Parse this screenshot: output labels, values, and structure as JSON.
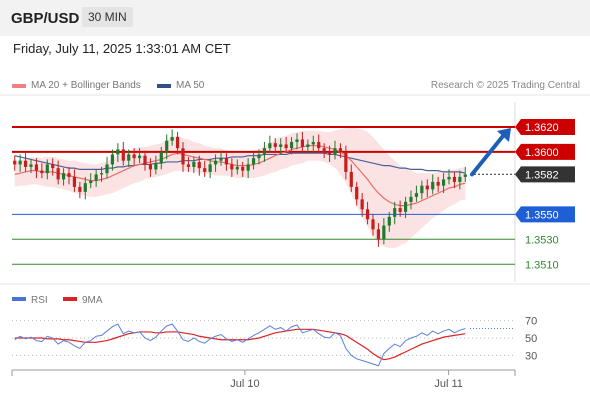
{
  "header": {
    "symbol": "GBP/USD",
    "timeframe": "30 MIN"
  },
  "datetime": "Friday, July 11, 2025 1:33:01 AM CET",
  "legend": [
    {
      "label": "MA 20 + Bollinger Bands",
      "color": "#f08080"
    },
    {
      "label": "MA 50",
      "color": "#2f4f8f"
    }
  ],
  "credit": "Research © 2025 Trading Central",
  "chart_data": {
    "type": "candlestick",
    "instrument": "GBP/USD",
    "ylim": [
      1.3495,
      1.364
    ],
    "x_ticks": [
      {
        "label": "Jul 10",
        "pos": 0.463
      },
      {
        "label": "Jul 11",
        "pos": 0.868
      }
    ],
    "levels": [
      {
        "value": 1.362,
        "label": "1.3620",
        "color": "#cc0000",
        "style": "resistance"
      },
      {
        "value": 1.36,
        "label": "1.3600",
        "color": "#cc0000",
        "style": "resistance"
      },
      {
        "value": 1.3582,
        "label": "1.3582",
        "color": "#333333",
        "style": "current"
      },
      {
        "value": 1.355,
        "label": "1.3550",
        "color": "#1f5fd6",
        "style": "pivot"
      },
      {
        "value": 1.353,
        "label": "1.3530",
        "color": "#2e8b2e",
        "style": "support"
      },
      {
        "value": 1.351,
        "label": "1.3510",
        "color": "#2e8b2e",
        "style": "support"
      }
    ],
    "close": [
      1.359,
      1.3593,
      1.3588,
      1.359,
      1.3585,
      1.3583,
      1.359,
      1.3587,
      1.3578,
      1.3583,
      1.358,
      1.3572,
      1.3568,
      1.3575,
      1.3577,
      1.3582,
      1.3583,
      1.359,
      1.3598,
      1.3602,
      1.3593,
      1.3598,
      1.3595,
      1.3597,
      1.359,
      1.3586,
      1.3591,
      1.36,
      1.3609,
      1.3612,
      1.3603,
      1.359,
      1.3588,
      1.3592,
      1.3587,
      1.3584,
      1.359,
      1.3593,
      1.3595,
      1.359,
      1.3586,
      1.3588,
      1.3585,
      1.359,
      1.3595,
      1.3598,
      1.3603,
      1.3607,
      1.3604,
      1.3606,
      1.3603,
      1.3608,
      1.361,
      1.3604,
      1.3606,
      1.3608,
      1.3603,
      1.36,
      1.3598,
      1.3603,
      1.36,
      1.3584,
      1.3572,
      1.3562,
      1.3554,
      1.3546,
      1.3538,
      1.353,
      1.3541,
      1.3548,
      1.3555,
      1.3552,
      1.356,
      1.3564,
      1.3567,
      1.3573,
      1.357,
      1.3576,
      1.3573,
      1.3578,
      1.358,
      1.3576,
      1.358,
      1.3582
    ],
    "ma20": [
      1.3582,
      1.3583,
      1.3584,
      1.3585,
      1.3585,
      1.3584,
      1.3584,
      1.3584,
      1.3583,
      1.3582,
      1.3581,
      1.358,
      1.3579,
      1.3578,
      1.3577,
      1.3577,
      1.3578,
      1.3579,
      1.3581,
      1.3583,
      1.3585,
      1.3587,
      1.3589,
      1.359,
      1.3591,
      1.3592,
      1.3593,
      1.3594,
      1.3596,
      1.3598,
      1.3599,
      1.3598,
      1.3597,
      1.3596,
      1.3595,
      1.3594,
      1.3593,
      1.3592,
      1.3592,
      1.3591,
      1.359,
      1.3589,
      1.3589,
      1.3589,
      1.359,
      1.3591,
      1.3593,
      1.3595,
      1.3597,
      1.3599,
      1.36,
      1.3602,
      1.3603,
      1.3604,
      1.3605,
      1.3605,
      1.3605,
      1.3604,
      1.3603,
      1.3602,
      1.36,
      1.3597,
      1.3593,
      1.3588,
      1.3583,
      1.3578,
      1.3572,
      1.3567,
      1.3563,
      1.356,
      1.3558,
      1.3557,
      1.3557,
      1.3558,
      1.3559,
      1.3561,
      1.3563,
      1.3565,
      1.3567,
      1.3569,
      1.3571,
      1.3572,
      1.3574,
      1.3575
    ],
    "ma50": [
      1.3597,
      1.3596,
      1.3595,
      1.3594,
      1.3593,
      1.3592,
      1.3591,
      1.359,
      1.3589,
      1.3588,
      1.3587,
      1.3587,
      1.3586,
      1.3586,
      1.3586,
      1.3586,
      1.3586,
      1.3587,
      1.3587,
      1.3588,
      1.3588,
      1.3589,
      1.3589,
      1.359,
      1.359,
      1.359,
      1.3591,
      1.3591,
      1.3592,
      1.3592,
      1.3592,
      1.3593,
      1.3593,
      1.3593,
      1.3594,
      1.3594,
      1.3594,
      1.3595,
      1.3595,
      1.3595,
      1.3596,
      1.3596,
      1.3596,
      1.3597,
      1.3597,
      1.3597,
      1.3598,
      1.3598,
      1.3598,
      1.3598,
      1.3598,
      1.3599,
      1.3599,
      1.3599,
      1.3599,
      1.3599,
      1.3599,
      1.3599,
      1.3598,
      1.3598,
      1.3597,
      1.3596,
      1.3595,
      1.3594,
      1.3593,
      1.3592,
      1.3591,
      1.359,
      1.3589,
      1.3589,
      1.3588,
      1.3587,
      1.3587,
      1.3586,
      1.3586,
      1.3586,
      1.3585,
      1.3585,
      1.3585,
      1.3584,
      1.3584,
      1.3584,
      1.3584,
      1.3583
    ],
    "bb_width": [
      0.001,
      0.001,
      0.0011,
      0.0011,
      0.0011,
      0.0011,
      0.0012,
      0.0012,
      0.0012,
      0.0012,
      0.0012,
      0.0013,
      0.0013,
      0.0013,
      0.0013,
      0.0013,
      0.0013,
      0.0013,
      0.0014,
      0.0014,
      0.0014,
      0.0014,
      0.0014,
      0.0014,
      0.0013,
      0.0013,
      0.0013,
      0.0013,
      0.0014,
      0.0014,
      0.0014,
      0.0013,
      0.0013,
      0.0012,
      0.0012,
      0.0011,
      0.0011,
      0.0011,
      0.0011,
      0.001,
      0.001,
      0.001,
      0.001,
      0.001,
      0.0011,
      0.0011,
      0.0012,
      0.0012,
      0.0013,
      0.0013,
      0.0013,
      0.0013,
      0.0013,
      0.0013,
      0.0012,
      0.0012,
      0.0012,
      0.0012,
      0.0013,
      0.0015,
      0.0018,
      0.0022,
      0.0027,
      0.0031,
      0.0035,
      0.0038,
      0.004,
      0.004,
      0.0039,
      0.0037,
      0.0035,
      0.0032,
      0.003,
      0.0027,
      0.0024,
      0.0022,
      0.002,
      0.0018,
      0.0017,
      0.0016,
      0.0015,
      0.0014,
      0.0013,
      0.0013
    ],
    "projection": {
      "from": 1.3582,
      "to": 1.362
    },
    "rsi": {
      "legend": [
        {
          "label": "RSI",
          "color": "#4a72d9"
        },
        {
          "label": "9MA",
          "color": "#dd2222"
        }
      ],
      "levels": [
        "70",
        "50",
        "30"
      ],
      "ylim": [
        20,
        80
      ],
      "rsi": [
        48,
        52,
        49,
        51,
        47,
        46,
        52,
        50,
        43,
        47,
        45,
        41,
        38,
        45,
        47,
        52,
        53,
        58,
        63,
        66,
        55,
        58,
        56,
        57,
        50,
        47,
        51,
        58,
        64,
        66,
        58,
        48,
        46,
        50,
        46,
        44,
        49,
        52,
        54,
        49,
        46,
        48,
        45,
        49,
        53,
        56,
        60,
        64,
        60,
        62,
        58,
        63,
        65,
        56,
        58,
        60,
        55,
        51,
        50,
        56,
        53,
        38,
        30,
        26,
        24,
        22,
        20,
        18,
        32,
        38,
        43,
        40,
        47,
        50,
        52,
        56,
        53,
        58,
        55,
        58,
        60,
        56,
        59,
        61
      ],
      "ma9": [
        50,
        50,
        50,
        50,
        50,
        50,
        49,
        49,
        49,
        48,
        48,
        47,
        46,
        45,
        45,
        45,
        46,
        47,
        49,
        51,
        53,
        55,
        56,
        57,
        57,
        57,
        56,
        56,
        57,
        57,
        57,
        56,
        55,
        54,
        52,
        51,
        50,
        49,
        48,
        48,
        48,
        48,
        48,
        48,
        49,
        50,
        52,
        54,
        56,
        57,
        58,
        59,
        60,
        60,
        60,
        60,
        59,
        58,
        57,
        56,
        55,
        53,
        49,
        45,
        41,
        37,
        32,
        28,
        25,
        26,
        28,
        31,
        34,
        37,
        40,
        43,
        45,
        47,
        49,
        51,
        52,
        53,
        54,
        55
      ]
    }
  }
}
